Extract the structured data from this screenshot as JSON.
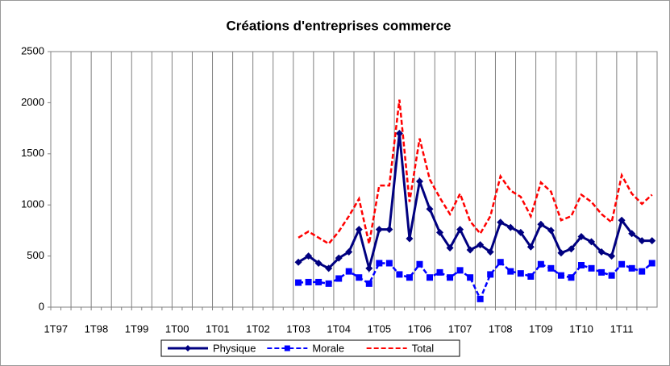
{
  "chart_data": {
    "type": "line",
    "title": "Créations d'entreprises commerce",
    "categories": [
      "1T97",
      null,
      null,
      null,
      "1T98",
      null,
      null,
      null,
      "1T99",
      null,
      null,
      null,
      "1T00",
      null,
      null,
      null,
      "1T01",
      null,
      null,
      null,
      "1T02",
      null,
      null,
      null,
      "1T03",
      null,
      null,
      null,
      "1T04",
      null,
      null,
      null,
      "1T05",
      null,
      null,
      null,
      "1T06",
      null,
      null,
      null,
      "1T07",
      null,
      null,
      null,
      "1T08",
      null,
      null,
      null,
      "1T09",
      null,
      null,
      null,
      "1T10",
      null,
      null,
      null,
      "1T11",
      null,
      null,
      null
    ],
    "ylim": [
      0,
      2500
    ],
    "yticks": [
      0,
      500,
      1000,
      1500,
      2000,
      2500
    ],
    "grid": true,
    "series": [
      {
        "name": "Physique",
        "color": "#000080",
        "marker": "diamond",
        "dash": "solid",
        "values": [
          null,
          null,
          null,
          null,
          null,
          null,
          null,
          null,
          null,
          null,
          null,
          null,
          null,
          null,
          null,
          null,
          null,
          null,
          null,
          null,
          null,
          null,
          null,
          null,
          440,
          500,
          430,
          380,
          480,
          540,
          760,
          380,
          760,
          760,
          1700,
          670,
          1230,
          960,
          730,
          580,
          760,
          560,
          610,
          540,
          830,
          780,
          730,
          590,
          810,
          750,
          530,
          570,
          690,
          640,
          540,
          500,
          850,
          720,
          650,
          650
        ]
      },
      {
        "name": "Morale",
        "color": "#0000ff",
        "marker": "square",
        "dash": "dashed",
        "values": [
          null,
          null,
          null,
          null,
          null,
          null,
          null,
          null,
          null,
          null,
          null,
          null,
          null,
          null,
          null,
          null,
          null,
          null,
          null,
          null,
          null,
          null,
          null,
          null,
          240,
          245,
          245,
          230,
          280,
          350,
          290,
          230,
          430,
          430,
          320,
          290,
          420,
          290,
          340,
          290,
          360,
          290,
          80,
          320,
          440,
          350,
          330,
          300,
          420,
          380,
          310,
          290,
          410,
          380,
          340,
          310,
          420,
          380,
          350,
          430
        ]
      },
      {
        "name": "Total",
        "color": "#ff0000",
        "marker": null,
        "dash": "dashed",
        "values": [
          null,
          null,
          null,
          null,
          null,
          null,
          null,
          null,
          null,
          null,
          null,
          null,
          null,
          null,
          null,
          null,
          null,
          null,
          null,
          null,
          null,
          null,
          null,
          null,
          680,
          740,
          680,
          620,
          740,
          890,
          1060,
          620,
          1190,
          1190,
          2030,
          1030,
          1650,
          1250,
          1070,
          910,
          1110,
          840,
          720,
          890,
          1280,
          1140,
          1080,
          890,
          1220,
          1130,
          850,
          890,
          1100,
          1030,
          910,
          830,
          1290,
          1110,
          1010,
          1100
        ]
      }
    ]
  }
}
